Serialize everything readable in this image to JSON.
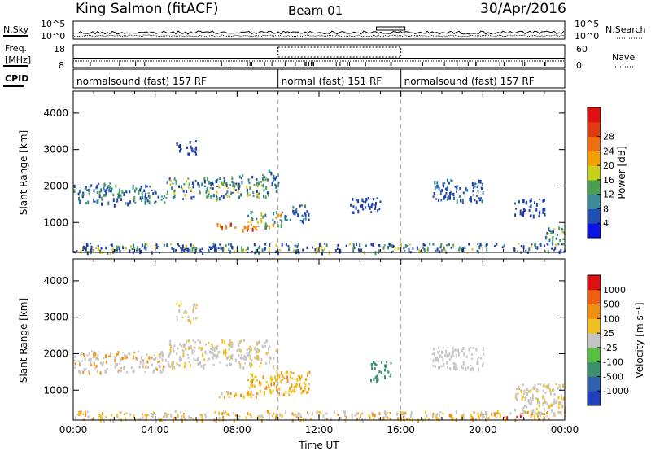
{
  "header": {
    "title": "King Salmon (fitACF)",
    "beam": "Beam 01",
    "date": "30/Apr/2016"
  },
  "top_panels": {
    "nsky": {
      "label": "N.Sky",
      "left_ticks": [
        "10^5",
        "10^0"
      ],
      "right_ticks": [
        "10^5",
        "10^0"
      ],
      "right_label": "N.Search"
    },
    "freq": {
      "label_line1": "Freq.",
      "label_line2": "[MHz]",
      "left_ticks": [
        "18",
        "8"
      ],
      "right_ticks": [
        "60",
        "0"
      ],
      "right_label": "Nave"
    },
    "cpid": {
      "label": "CPID",
      "segments": [
        {
          "label": "normalsound (fast) 157 RF",
          "start": 0,
          "end": 10
        },
        {
          "label": "normal (fast) 151 RF",
          "start": 10,
          "end": 16
        },
        {
          "label": "normalsound (fast) 157 RF",
          "start": 16,
          "end": 24
        }
      ]
    }
  },
  "chart_data": [
    {
      "type": "heatmap",
      "name": "power",
      "ylabel": "Slant Range [km]",
      "ylim": [
        180,
        4600
      ],
      "yticks": [
        "1000",
        "2000",
        "3000",
        "4000"
      ],
      "ytick_values": [
        1000,
        2000,
        3000,
        4000
      ],
      "xlim": [
        0,
        24
      ],
      "colorbar": {
        "label": "Power [dB]",
        "ticks": [
          "4",
          "8",
          "12",
          "16",
          "20",
          "24",
          "28"
        ],
        "colors": [
          "#0a14e8",
          "#1f4fb4",
          "#3a8a9a",
          "#4aa050",
          "#c8d018",
          "#f4a000",
          "#f07010",
          "#e03a10",
          "#e01010"
        ]
      },
      "colors": {
        "blue": "#1f3fb0",
        "teal": "#2e7e95",
        "green": "#4aa058",
        "yellow": "#d8c818",
        "orange": "#f08a10",
        "red": "#e02a10"
      },
      "regions": [
        {
          "x0": 0.0,
          "x1": 2.0,
          "y0": 1500,
          "y1": 2100,
          "colors": [
            "blue",
            "blue",
            "teal",
            "green"
          ]
        },
        {
          "x0": 2.0,
          "x1": 4.5,
          "y0": 1550,
          "y1": 2050,
          "colors": [
            "blue",
            "teal",
            "green",
            "green",
            "blue"
          ]
        },
        {
          "x0": 4.5,
          "x1": 7.5,
          "y0": 1650,
          "y1": 2250,
          "colors": [
            "blue",
            "teal",
            "green",
            "yellow",
            "green"
          ]
        },
        {
          "x0": 7.5,
          "x1": 9.5,
          "y0": 1700,
          "y1": 2350,
          "colors": [
            "teal",
            "green",
            "yellow",
            "green",
            "blue"
          ]
        },
        {
          "x0": 9.5,
          "x1": 10.0,
          "y0": 1900,
          "y1": 2450,
          "colors": [
            "blue",
            "teal"
          ]
        },
        {
          "x0": 7.0,
          "x1": 9.0,
          "y0": 800,
          "y1": 1000,
          "colors": [
            "red",
            "orange",
            "red",
            "orange"
          ]
        },
        {
          "x0": 8.5,
          "x1": 10.2,
          "y0": 900,
          "y1": 1350,
          "colors": [
            "yellow",
            "orange",
            "green",
            "teal"
          ]
        },
        {
          "x0": 10.2,
          "x1": 11.5,
          "y0": 1050,
          "y1": 1500,
          "colors": [
            "blue",
            "teal"
          ]
        },
        {
          "x0": 5.0,
          "x1": 6.0,
          "y0": 2900,
          "y1": 3300,
          "colors": [
            "blue"
          ]
        },
        {
          "x0": 13.5,
          "x1": 15.0,
          "y0": 1300,
          "y1": 1700,
          "colors": [
            "blue"
          ]
        },
        {
          "x0": 17.5,
          "x1": 20.0,
          "y0": 1600,
          "y1": 2200,
          "colors": [
            "blue",
            "teal"
          ]
        },
        {
          "x0": 21.5,
          "x1": 23.0,
          "y0": 1200,
          "y1": 1700,
          "colors": [
            "blue"
          ]
        },
        {
          "x0": 23.0,
          "x1": 24.0,
          "y0": 400,
          "y1": 900,
          "colors": [
            "blue",
            "teal",
            "green",
            "yellow"
          ]
        },
        {
          "x0": 0.0,
          "x1": 24.0,
          "y0": 200,
          "y1": 450,
          "colors": [
            "blue",
            "blue",
            "teal",
            "green",
            "yellow",
            "blue"
          ]
        }
      ]
    },
    {
      "type": "heatmap",
      "name": "velocity",
      "ylabel": "Slant Range [km]",
      "xlabel": "Time UT",
      "ylim": [
        180,
        4600
      ],
      "yticks": [
        "1000",
        "2000",
        "3000",
        "4000"
      ],
      "ytick_values": [
        1000,
        2000,
        3000,
        4000
      ],
      "xlim": [
        0,
        24
      ],
      "xticks": [
        "00:00",
        "04:00",
        "08:00",
        "12:00",
        "16:00",
        "20:00",
        "00:00"
      ],
      "xtick_values": [
        0,
        4,
        8,
        12,
        16,
        20,
        24
      ],
      "colorbar": {
        "label": "Velocity [m s⁻¹]",
        "ticks": [
          "1000",
          "500",
          "100",
          "25",
          "-25",
          "-100",
          "-500",
          "-1000"
        ],
        "colors": [
          "#2040c0",
          "#3060b0",
          "#3a9070",
          "#58c040",
          "#c4c4c4",
          "#f0c020",
          "#f09010",
          "#f06010",
          "#e01010"
        ]
      },
      "colors": {
        "grey": "#c6c6c6",
        "yellow": "#f0c020",
        "orange": "#f09010",
        "green": "#3a9070",
        "red": "#e01010"
      },
      "regions": [
        {
          "x0": 0.0,
          "x1": 4.5,
          "y0": 1500,
          "y1": 2100,
          "colors": [
            "grey",
            "grey",
            "grey",
            "orange"
          ]
        },
        {
          "x0": 4.5,
          "x1": 10.0,
          "y0": 1650,
          "y1": 2400,
          "colors": [
            "grey",
            "grey",
            "yellow",
            "grey"
          ]
        },
        {
          "x0": 7.0,
          "x1": 9.0,
          "y0": 800,
          "y1": 1000,
          "colors": [
            "yellow",
            "grey",
            "orange"
          ]
        },
        {
          "x0": 8.5,
          "x1": 11.5,
          "y0": 900,
          "y1": 1550,
          "colors": [
            "yellow",
            "orange",
            "yellow"
          ]
        },
        {
          "x0": 5.0,
          "x1": 6.0,
          "y0": 2900,
          "y1": 3400,
          "colors": [
            "grey",
            "yellow"
          ]
        },
        {
          "x0": 14.5,
          "x1": 15.5,
          "y0": 1300,
          "y1": 1800,
          "colors": [
            "green"
          ]
        },
        {
          "x0": 17.5,
          "x1": 20.0,
          "y0": 1600,
          "y1": 2200,
          "colors": [
            "grey"
          ]
        },
        {
          "x0": 21.5,
          "x1": 24.0,
          "y0": 400,
          "y1": 1200,
          "colors": [
            "grey",
            "grey",
            "yellow"
          ]
        },
        {
          "x0": 21.0,
          "x1": 22.0,
          "y0": 250,
          "y1": 350,
          "colors": [
            "red",
            "orange"
          ]
        },
        {
          "x0": 0.0,
          "x1": 24.0,
          "y0": 200,
          "y1": 450,
          "colors": [
            "yellow",
            "grey",
            "orange",
            "grey"
          ]
        }
      ]
    }
  ]
}
